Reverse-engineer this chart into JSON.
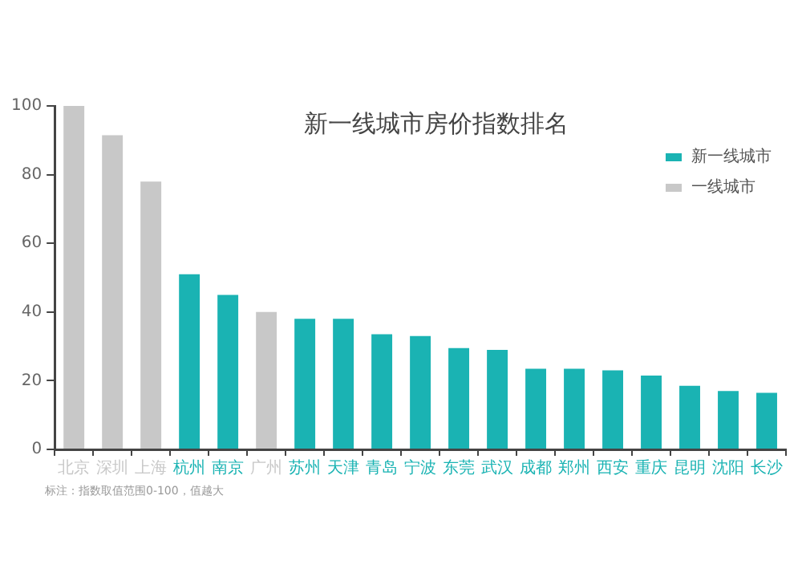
{
  "chart_data": {
    "type": "bar",
    "title": "新一线城市房价指数排名",
    "categories": [
      "北京",
      "深圳",
      "上海",
      "杭州",
      "南京",
      "广州",
      "苏州",
      "天津",
      "青岛",
      "宁波",
      "东莞",
      "武汉",
      "成都",
      "郑州",
      "西安",
      "重庆",
      "昆明",
      "沈阳",
      "长沙"
    ],
    "series": [
      {
        "name": "新一线城市",
        "color": "#1ab3b3",
        "values": [
          null,
          null,
          null,
          51,
          45,
          null,
          38,
          38,
          33.5,
          33,
          29.5,
          29,
          23.5,
          23.5,
          23,
          21.5,
          18.5,
          17,
          16.5
        ]
      },
      {
        "name": "一线城市",
        "color": "#c8c8c8",
        "values": [
          100,
          91.5,
          78,
          null,
          null,
          40,
          null,
          null,
          null,
          null,
          null,
          null,
          null,
          null,
          null,
          null,
          null,
          null,
          null
        ]
      }
    ],
    "ylim": [
      0,
      100
    ],
    "yticks": [
      0,
      20,
      40,
      60,
      80,
      100
    ],
    "grid": false,
    "legend": "top right",
    "annotations": [
      "标注：指数取值范围0-100，值越大"
    ]
  }
}
